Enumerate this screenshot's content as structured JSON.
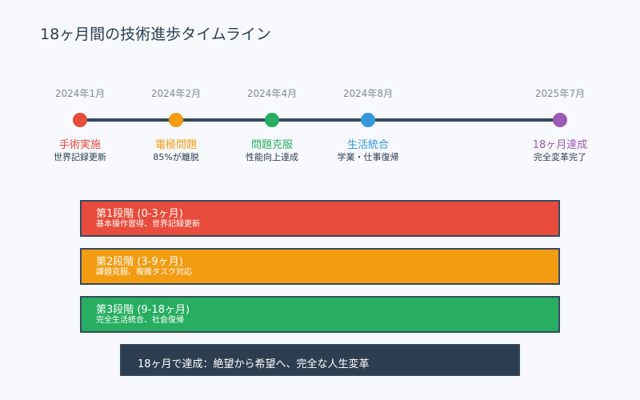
{
  "title": "18ヶ月間の技術進歩タイムライン",
  "milestones": [
    {
      "date": "2024年1月",
      "label": "手術実施",
      "desc": "世界記録更新",
      "color": "#e74c3c"
    },
    {
      "date": "2024年2月",
      "label": "電極問題",
      "desc": "85%が離脱",
      "color": "#f39c12"
    },
    {
      "date": "2024年4月",
      "label": "問題克服",
      "desc": "性能向上達成",
      "color": "#27ae60"
    },
    {
      "date": "2024年8月",
      "label": "生活統合",
      "desc": "学業・仕事復帰",
      "color": "#3498db"
    },
    {
      "date": "2025年7月",
      "label": "18ヶ月達成",
      "desc": "完全変革完了",
      "color": "#9b59b6"
    }
  ],
  "phases": [
    {
      "title": "第1段階 (0-3ヶ月)",
      "desc": "基本操作習得、世界記録更新",
      "color": "#e74c3c"
    },
    {
      "title": "第2段階 (3-9ヶ月)",
      "desc": "課題克服、複雑タスク対応",
      "color": "#f39c12"
    },
    {
      "title": "第3段階 (9-18ヶ月)",
      "desc": "完全生活統合、社会復帰",
      "color": "#27ae60"
    }
  ],
  "summary": "18ヶ月で達成：絶望から希望へ、完全な人生変革"
}
